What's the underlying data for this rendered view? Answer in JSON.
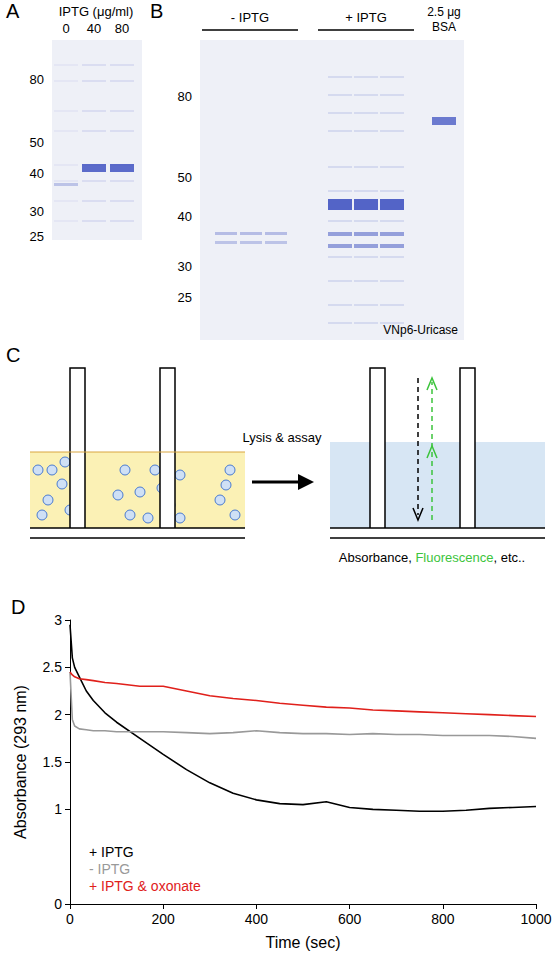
{
  "panels": {
    "A": {
      "letter": "A",
      "header": "IPTG (μg/ml)",
      "lanes": [
        "0",
        "40",
        "80"
      ],
      "markers": [
        80,
        50,
        40,
        30,
        25
      ]
    },
    "B": {
      "letter": "B",
      "groups": [
        "- IPTG",
        "+ IPTG"
      ],
      "standard": "2.5 μg BSA",
      "markers": [
        80,
        50,
        40,
        30,
        25
      ],
      "label": "VNp6-Uricase"
    },
    "C": {
      "letter": "C",
      "step": "Lysis & assay",
      "readout": [
        "Absorbance, ",
        "Fluorescence",
        ", etc.."
      ]
    }
  },
  "chart_data": {
    "type": "line",
    "title": "D",
    "x_label": "Time (sec)",
    "y_label": "Absorbance (293 nm)",
    "x": [
      0,
      5,
      10,
      20,
      35,
      50,
      75,
      100,
      150,
      200,
      250,
      300,
      350,
      400,
      450,
      500,
      550,
      600,
      650,
      700,
      750,
      800,
      850,
      900,
      950,
      1000
    ],
    "series": [
      {
        "name": "+ IPTG",
        "color": "#000000",
        "values": [
          2.95,
          2.6,
          2.5,
          2.4,
          2.25,
          2.15,
          2.02,
          1.92,
          1.75,
          1.58,
          1.42,
          1.28,
          1.17,
          1.1,
          1.06,
          1.05,
          1.08,
          1.02,
          1.0,
          0.99,
          0.98,
          0.98,
          0.99,
          1.01,
          1.02,
          1.03
        ]
      },
      {
        "name": "- IPTG",
        "color": "#999999",
        "values": [
          2.45,
          1.95,
          1.88,
          1.85,
          1.84,
          1.83,
          1.83,
          1.82,
          1.82,
          1.82,
          1.81,
          1.8,
          1.81,
          1.83,
          1.81,
          1.8,
          1.8,
          1.79,
          1.8,
          1.79,
          1.79,
          1.78,
          1.78,
          1.78,
          1.77,
          1.75
        ]
      },
      {
        "name": "+ IPTG & oxonate",
        "color": "#e0201b",
        "values": [
          2.45,
          2.42,
          2.4,
          2.38,
          2.37,
          2.36,
          2.34,
          2.33,
          2.3,
          2.3,
          2.25,
          2.2,
          2.17,
          2.15,
          2.12,
          2.1,
          2.08,
          2.07,
          2.05,
          2.04,
          2.03,
          2.02,
          2.01,
          2.0,
          1.99,
          1.98
        ]
      }
    ],
    "xlim": [
      0,
      1000
    ],
    "xticks": [
      0,
      200,
      400,
      600,
      800,
      1000
    ],
    "ylim": [
      0,
      3
    ],
    "yticks": [
      0,
      1,
      1.5,
      2,
      2.5,
      3
    ],
    "grid": false,
    "legend": "lower left"
  }
}
